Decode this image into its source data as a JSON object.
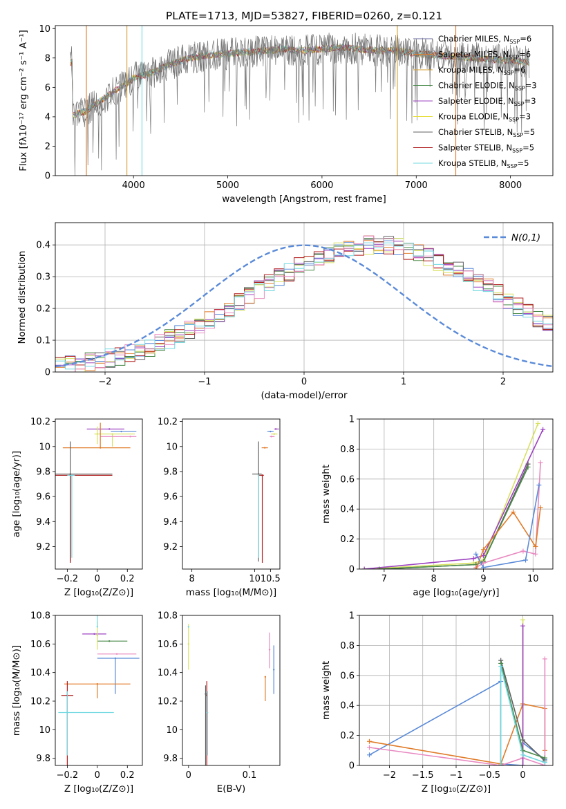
{
  "figure": {
    "title": "PLATE=1713, MJD=53827, FIBERID=0260, z=0.121"
  },
  "model_colors": [
    "#6a6aa0",
    "#e07b28",
    "#d4a030",
    "#4a8a4a",
    "#9b40c0",
    "#e8e040",
    "#606060",
    "#b01c1c",
    "#70d8e0"
  ],
  "chart_data": [
    {
      "id": "spectrum",
      "type": "line",
      "xlabel": "wavelength [Angstrom, rest frame]",
      "ylabel": "Flux [fλ10⁻¹⁷ erg cm⁻² s⁻¹ A⁻¹]",
      "xlim": [
        3170,
        8450
      ],
      "ylim": [
        0,
        10.2
      ],
      "xticks": [
        4000,
        5000,
        6000,
        7000,
        8000
      ],
      "yticks": [
        0,
        2,
        4,
        6,
        8,
        10
      ],
      "continuum": {
        "x": [
          3350,
          3500,
          3700,
          3900,
          4000,
          4200,
          4400,
          4600,
          4800,
          5000,
          5200,
          5400,
          5600,
          5800,
          6000,
          6200,
          6400,
          6600,
          6800,
          7000,
          7200,
          7400,
          7600,
          7800,
          8000,
          8200
        ],
        "y": [
          4.1,
          4.4,
          5.3,
          6.2,
          6.6,
          7.0,
          7.6,
          8.0,
          8.2,
          8.3,
          8.4,
          8.5,
          8.6,
          8.5,
          8.6,
          8.7,
          8.6,
          8.5,
          8.5,
          8.3,
          8.2,
          8.1,
          8.0,
          7.9,
          7.8,
          7.7
        ]
      },
      "legend": [
        {
          "name": "Chabrier MILES, N",
          "sub": "SSP",
          "count": "=6"
        },
        {
          "name": "Salpeter MILES, N",
          "sub": "SSP",
          "count": "=6"
        },
        {
          "name": "Kroupa MILES, N",
          "sub": "SSP",
          "count": "=6"
        },
        {
          "name": "Chabrier ELODIE, N",
          "sub": "SSP",
          "count": "=3"
        },
        {
          "name": "Salpeter ELODIE, N",
          "sub": "SSP",
          "count": "=3"
        },
        {
          "name": "Kroupa ELODIE, N",
          "sub": "SSP",
          "count": "=3"
        },
        {
          "name": "Chabrier STELIB, N",
          "sub": "SSP",
          "count": "=5"
        },
        {
          "name": "Salpeter STELIB, N",
          "sub": "SSP",
          "count": "=5"
        },
        {
          "name": "Kroupa STELIB, N",
          "sub": "SSP",
          "count": "=5"
        }
      ],
      "legend_colors": [
        "#6a6aa0",
        "#e07b28",
        "#d4a030",
        "#4a8a4a",
        "#9b40c0",
        "#e8e040",
        "#606060",
        "#b01c1c",
        "#70d8e0"
      ]
    },
    {
      "id": "residuals",
      "type": "line",
      "xlabel": "(data-model)/error",
      "ylabel": "Normed distribution",
      "xlim": [
        -2.5,
        2.5
      ],
      "ylim": [
        0,
        0.47
      ],
      "xticks": [
        -2,
        -1,
        0,
        1,
        2
      ],
      "yticks": [
        0.0,
        0.1,
        0.2,
        0.3,
        0.4
      ],
      "grid": true,
      "legend_label": "N(0,1)",
      "legend_position": "top-right",
      "gaussian_color": "#5a8ad8",
      "hist_edges_start": -2.5,
      "hist_bin": 0.1,
      "hist_base": [
        0.02,
        0.022,
        0.026,
        0.031,
        0.036,
        0.043,
        0.05,
        0.058,
        0.068,
        0.079,
        0.091,
        0.104,
        0.118,
        0.133,
        0.15,
        0.167,
        0.185,
        0.203,
        0.222,
        0.241,
        0.26,
        0.28,
        0.298,
        0.315,
        0.332,
        0.347,
        0.36,
        0.372,
        0.382,
        0.39,
        0.396,
        0.399,
        0.399,
        0.397,
        0.392,
        0.384,
        0.374,
        0.362,
        0.348,
        0.333,
        0.317,
        0.3,
        0.282,
        0.263,
        0.245,
        0.226,
        0.207,
        0.189,
        0.171,
        0.154,
        0.138
      ],
      "hist_colors": [
        "#5a8ad8",
        "#e07b28",
        "#4a8a4a",
        "#9b40c0",
        "#d8e060",
        "#606060",
        "#b01c1c",
        "#e888c0",
        "#70d8e0"
      ]
    },
    {
      "id": "age_vs_Z",
      "type": "scatter",
      "xlabel": "Z [log₁₀(Z/Z⊙)]",
      "ylabel": "age  [log₁₀(age/yr)]",
      "xlim": [
        -0.28,
        0.3
      ],
      "ylim": [
        9.02,
        10.22
      ],
      "xticks": [
        -0.2,
        0.0,
        0.2
      ],
      "yticks": [
        9.2,
        9.4,
        9.6,
        9.8,
        10.0,
        10.2
      ],
      "points": [
        {
          "x": 0.08,
          "xerr": [
            0.15,
            0.1
          ],
          "y": 10.14,
          "yerr": [
            0.0,
            0.0
          ],
          "color": "#9b40c0"
        },
        {
          "x": 0.16,
          "xerr": [
            0.07,
            0.1
          ],
          "y": 10.12,
          "yerr": [
            0.0,
            0.0
          ],
          "color": "#5a8ad8"
        },
        {
          "x": 0.1,
          "xerr": [
            0.12,
            0.15
          ],
          "y": 10.1,
          "yerr": [
            0.1,
            0.0
          ],
          "color": "#d8e060"
        },
        {
          "x": 0.22,
          "xerr": [
            0.2,
            0.04
          ],
          "y": 10.08,
          "yerr": [
            0.0,
            0.0
          ],
          "color": "#e888c0"
        },
        {
          "x": 0.02,
          "xerr": [
            0.25,
            0.2
          ],
          "y": 9.99,
          "yerr": [
            0.0,
            0.2
          ],
          "color": "#e07b28"
        },
        {
          "x": -0.18,
          "xerr": [
            0.1,
            0.28
          ],
          "y": 9.78,
          "yerr": [
            0.7,
            0.26
          ],
          "color": "#606060"
        },
        {
          "x": -0.18,
          "xerr": [
            0.1,
            0.28
          ],
          "y": 9.77,
          "yerr": [
            0.7,
            0.0
          ],
          "color": "#b01c1c"
        },
        {
          "x": -0.17,
          "xerr": [
            0.03,
            0.02
          ],
          "y": 9.77,
          "yerr": [
            0.66,
            0.0
          ],
          "color": "#70d8e0"
        },
        {
          "x": 0.0,
          "xerr": [
            0.0,
            0.0
          ],
          "y": 10.1,
          "yerr": [
            0.08,
            0.06
          ],
          "color": "#d8e060"
        }
      ]
    },
    {
      "id": "age_vs_mass",
      "type": "scatter",
      "xlabel": "mass [log₁₀(M/M⊙)]",
      "ylabel": "",
      "xlim": [
        7.7,
        10.8
      ],
      "ylim": [
        9.02,
        10.22
      ],
      "xticks": [
        8,
        10,
        10.5
      ],
      "xticklabels": [
        "8",
        "10",
        "10.5"
      ],
      "yticks": [
        9.2,
        9.4,
        9.6,
        9.8,
        10.0,
        10.2
      ],
      "points": [
        {
          "x": 10.67,
          "xerr": [
            0.05,
            0.1
          ],
          "y": 10.14,
          "yerr": [
            0.0,
            0.0
          ],
          "color": "#9b40c0"
        },
        {
          "x": 10.5,
          "xerr": [
            0.1,
            0.1
          ],
          "y": 10.12,
          "yerr": [
            0.0,
            0.0
          ],
          "color": "#5a8ad8"
        },
        {
          "x": 10.62,
          "xerr": [
            0.1,
            0.1
          ],
          "y": 10.1,
          "yerr": [
            0.0,
            0.0
          ],
          "color": "#d8e060"
        },
        {
          "x": 10.53,
          "xerr": [
            0.05,
            0.1
          ],
          "y": 10.08,
          "yerr": [
            0.0,
            0.0
          ],
          "color": "#e888c0"
        },
        {
          "x": 10.32,
          "xerr": [
            0.1,
            0.1
          ],
          "y": 9.99,
          "yerr": [
            0.0,
            0.0
          ],
          "color": "#e07b28"
        },
        {
          "x": 10.12,
          "xerr": [
            0.2,
            0.1
          ],
          "y": 9.78,
          "yerr": [
            0.7,
            0.26
          ],
          "color": "#606060"
        },
        {
          "x": 10.24,
          "xerr": [
            0.1,
            0.05
          ],
          "y": 9.77,
          "yerr": [
            0.7,
            0.0
          ],
          "color": "#b01c1c"
        },
        {
          "x": 10.12,
          "xerr": [
            0.0,
            0.0
          ],
          "y": 9.77,
          "yerr": [
            0.66,
            0.0
          ],
          "color": "#70d8e0"
        }
      ]
    },
    {
      "id": "mass_weight_vs_age",
      "type": "line",
      "xlabel": "age  [log₁₀(age/yr)]",
      "ylabel": "mass weight",
      "xlim": [
        6.5,
        10.4
      ],
      "ylim": [
        0,
        1.0
      ],
      "xticks": [
        7,
        8,
        9,
        10
      ],
      "yticks": [
        0.0,
        0.2,
        0.4,
        0.6,
        0.8,
        1.0
      ],
      "grid": true,
      "series": [
        {
          "color": "#d8e060",
          "x": [
            6.6,
            8.8,
            9.0,
            10.1
          ],
          "y": [
            0.0,
            0.04,
            0.06,
            0.97
          ]
        },
        {
          "color": "#9b40c0",
          "x": [
            6.6,
            8.8,
            9.0,
            10.2
          ],
          "y": [
            0.0,
            0.07,
            0.09,
            0.93
          ]
        },
        {
          "color": "#606060",
          "x": [
            6.9,
            8.85,
            9.0,
            9.9
          ],
          "y": [
            0.0,
            0.03,
            0.05,
            0.7
          ]
        },
        {
          "color": "#4a8a4a",
          "x": [
            6.9,
            8.85,
            9.0,
            9.9
          ],
          "y": [
            0.0,
            0.03,
            0.05,
            0.68
          ]
        },
        {
          "color": "#e888c0",
          "x": [
            8.85,
            9.0,
            9.8,
            10.05,
            10.15
          ],
          "y": [
            0.01,
            0.04,
            0.12,
            0.1,
            0.71
          ]
        },
        {
          "color": "#e07b28",
          "x": [
            8.85,
            9.0,
            9.6,
            10.05,
            10.15
          ],
          "y": [
            0.0,
            0.13,
            0.38,
            0.15,
            0.41
          ]
        },
        {
          "color": "#5a8ad8",
          "x": [
            8.85,
            9.0,
            9.85,
            10.12
          ],
          "y": [
            0.1,
            0.01,
            0.06,
            0.56
          ]
        }
      ]
    },
    {
      "id": "mass_vs_Z",
      "type": "scatter",
      "xlabel": "Z [log₁₀(Z/Z⊙)]",
      "ylabel": "mass [log₁₀(M/M⊙)]",
      "xlim": [
        -0.28,
        0.3
      ],
      "ylim": [
        9.75,
        10.8
      ],
      "xticks": [
        -0.2,
        0.0,
        0.2
      ],
      "yticks": [
        9.8,
        10.0,
        10.2,
        10.4,
        10.6,
        10.8
      ],
      "points": [
        {
          "x": -0.02,
          "xerr": [
            0.08,
            0.08
          ],
          "y": 10.67,
          "yerr": [
            0.0,
            0.0
          ],
          "color": "#9b40c0"
        },
        {
          "x": 0.08,
          "xerr": [
            0.08,
            0.12
          ],
          "y": 10.62,
          "yerr": [
            0.0,
            0.0
          ],
          "color": "#4a8a4a"
        },
        {
          "x": 0.0,
          "xerr": [
            0.0,
            0.0
          ],
          "y": 10.66,
          "yerr": [
            0.1,
            0.1
          ],
          "color": "#d8e060"
        },
        {
          "x": 0.13,
          "xerr": [
            0.13,
            0.13
          ],
          "y": 10.53,
          "yerr": [
            0.0,
            0.0
          ],
          "color": "#e888c0"
        },
        {
          "x": 0.12,
          "xerr": [
            0.12,
            0.16
          ],
          "y": 10.5,
          "yerr": [
            0.25,
            0.0
          ],
          "color": "#5a8ad8"
        },
        {
          "x": 0.0,
          "xerr": [
            0.22,
            0.22
          ],
          "y": 10.32,
          "yerr": [
            0.1,
            0.0
          ],
          "color": "#e07b28"
        },
        {
          "x": -0.2,
          "xerr": [
            0.04,
            0.04
          ],
          "y": 10.24,
          "yerr": [
            0.5,
            0.1
          ],
          "color": "#b01c1c"
        },
        {
          "x": -0.2,
          "xerr": [
            0.06,
            0.31
          ],
          "y": 10.12,
          "yerr": [
            0.3,
            0.15
          ],
          "color": "#70d8e0"
        },
        {
          "x": 0.0,
          "xerr": [
            0.0,
            0.0
          ],
          "y": 10.72,
          "yerr": [
            0.0,
            0.08
          ],
          "color": "#70d8e0"
        }
      ]
    },
    {
      "id": "mass_vs_ebv",
      "type": "scatter",
      "xlabel": "E(B-V)",
      "ylabel": "",
      "xlim": [
        -0.01,
        0.15
      ],
      "ylim": [
        9.75,
        10.8
      ],
      "xticks": [
        0.0,
        0.1
      ],
      "yticks": [
        9.8,
        10.0,
        10.2,
        10.4,
        10.6,
        10.8
      ],
      "points": [
        {
          "x": 0.0,
          "yerr": [
            0.18,
            0.14
          ],
          "y": 10.6,
          "color": "#d8e060"
        },
        {
          "x": 0.0,
          "yerr": [
            0.0,
            0.0
          ],
          "y": 10.72,
          "color": "#70d8e0"
        },
        {
          "x": 0.126,
          "yerr": [
            0.17,
            0.0
          ],
          "y": 10.37,
          "color": "#e07b28"
        },
        {
          "x": 0.133,
          "yerr": [
            0.13,
            0.12
          ],
          "y": 10.56,
          "color": "#e888c0"
        },
        {
          "x": 0.14,
          "yerr": [
            0.17,
            0.17
          ],
          "y": 10.42,
          "color": "#5a8ad8"
        },
        {
          "x": 0.028,
          "yerr": [
            0.5,
            0.06
          ],
          "y": 10.25,
          "color": "#606060"
        },
        {
          "x": 0.03,
          "yerr": [
            0.5,
            0.1
          ],
          "y": 10.24,
          "color": "#b01c1c"
        },
        {
          "x": 0.031,
          "yerr": [
            0.3,
            0.15
          ],
          "y": 10.12,
          "color": "#70d8e0"
        }
      ]
    },
    {
      "id": "mass_weight_vs_Z",
      "type": "line",
      "xlabel": "Z [log₁₀(Z/Z⊙)]",
      "ylabel": "mass weight",
      "xlim": [
        -2.45,
        0.45
      ],
      "ylim": [
        0,
        1.0
      ],
      "xticks": [
        -2.0,
        -1.5,
        -1.0,
        -0.5,
        0.0
      ],
      "yticks": [
        0.0,
        0.2,
        0.4,
        0.6,
        0.8,
        1.0
      ],
      "grid": true,
      "series": [
        {
          "color": "#5a8ad8",
          "x": [
            -2.3,
            -0.33,
            -0.33,
            0.0,
            0.0,
            0.33
          ],
          "y": [
            0.07,
            0.56,
            0.01,
            0.0,
            0.15,
            0.04
          ]
        },
        {
          "color": "#e07b28",
          "x": [
            -2.3,
            -0.33,
            0.0,
            0.33,
            0.33
          ],
          "y": [
            0.16,
            0.01,
            0.41,
            0.38,
            0.1
          ]
        },
        {
          "color": "#e888c0",
          "x": [
            -2.3,
            -0.33,
            0.0,
            0.33,
            0.33
          ],
          "y": [
            0.12,
            0.0,
            0.05,
            0.0,
            0.71
          ]
        },
        {
          "color": "#d8e060",
          "x": [
            0.0,
            0.0
          ],
          "y": [
            0.0,
            0.97
          ]
        },
        {
          "color": "#9b40c0",
          "x": [
            0.0,
            0.0
          ],
          "y": [
            0.0,
            0.93
          ]
        },
        {
          "color": "#606060",
          "x": [
            -0.33,
            -0.33,
            0.0,
            0.33
          ],
          "y": [
            0.0,
            0.7,
            0.17,
            0.03
          ]
        },
        {
          "color": "#4a8a4a",
          "x": [
            -0.33,
            -0.33,
            0.0,
            0.33
          ],
          "y": [
            0.0,
            0.68,
            0.1,
            0.05
          ]
        },
        {
          "color": "#70d8e0",
          "x": [
            -0.33,
            -0.33,
            0.0,
            0.33
          ],
          "y": [
            0.0,
            0.66,
            0.07,
            0.02
          ]
        }
      ]
    }
  ]
}
